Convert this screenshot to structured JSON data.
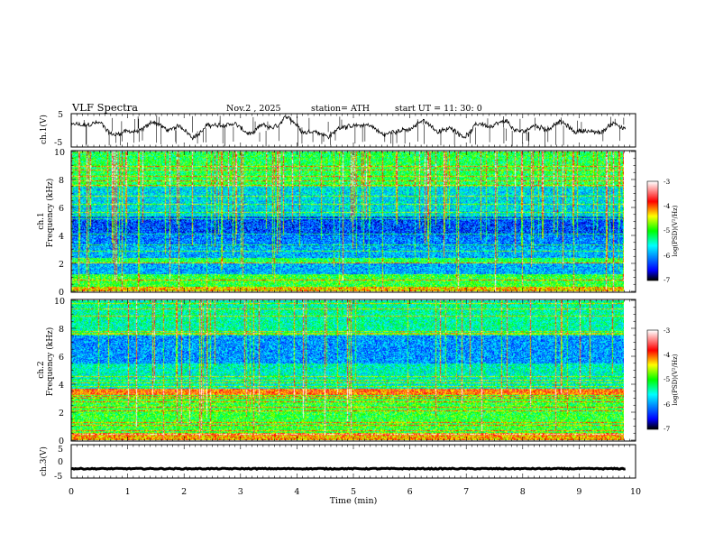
{
  "header": {
    "title": "VLF  Spectra",
    "date": "Nov.2  , 2025",
    "station": "station= ATH",
    "start_ut": "start  UT  =    11: 30: 0"
  },
  "chart_data": [
    {
      "type": "line",
      "name": "ch1-waveform",
      "ylabel": "ch.1(V)",
      "ylim": [
        -5,
        5
      ],
      "yticks": [
        "5",
        "-5"
      ],
      "xlim": [
        0,
        10
      ],
      "data_extent_min": 9.82,
      "description_values": {
        "baseline_v": 0.5,
        "amplitude_v": 2.5,
        "spikes": "frequent downward spikes to about -4 V"
      }
    },
    {
      "type": "heatmap",
      "name": "ch1-spectrogram",
      "ylabel_line1": "ch.1",
      "ylabel_line2": "Frequency  (kHz)",
      "xlim": [
        0,
        10
      ],
      "ylim": [
        0,
        10
      ],
      "yticks": [
        "0",
        "2",
        "4",
        "6",
        "8",
        "10"
      ],
      "colorbar": {
        "label": "log(PSD)(V²/Hz)",
        "range": [
          -7,
          -3
        ],
        "ticks": [
          "-3",
          "-4",
          "-5",
          "-6",
          "-7"
        ]
      },
      "bands_khz": [
        {
          "range": [
            0.0,
            0.3
          ],
          "level": -4.3
        },
        {
          "range": [
            0.3,
            1.2
          ],
          "level": -5.0
        },
        {
          "range": [
            1.2,
            2.0
          ],
          "level": -5.9
        },
        {
          "range": [
            2.0,
            2.4
          ],
          "level": -5.1
        },
        {
          "range": [
            2.4,
            3.2
          ],
          "level": -5.9
        },
        {
          "range": [
            3.2,
            4.0
          ],
          "level": -6.1
        },
        {
          "range": [
            4.0,
            5.4
          ],
          "level": -6.3
        },
        {
          "range": [
            5.4,
            7.5
          ],
          "level": -5.7
        },
        {
          "range": [
            7.5,
            10.0
          ],
          "level": -5.1
        }
      ]
    },
    {
      "type": "heatmap",
      "name": "ch2-spectrogram",
      "ylabel_line1": "ch.2",
      "ylabel_line2": "Frequency  (kHz)",
      "xlim": [
        0,
        10
      ],
      "ylim": [
        0,
        10
      ],
      "yticks": [
        "0",
        "2",
        "4",
        "6",
        "8",
        "10"
      ],
      "colorbar": {
        "label": "log(PSD)(V²/Hz)",
        "range": [
          -7,
          -3
        ],
        "ticks": [
          "-3",
          "-4",
          "-5",
          "-6",
          "-7"
        ]
      },
      "bands_khz": [
        {
          "range": [
            0.0,
            0.5
          ],
          "level": -4.2
        },
        {
          "range": [
            0.5,
            3.2
          ],
          "level": -5.0
        },
        {
          "range": [
            3.2,
            3.7
          ],
          "level": -4.0
        },
        {
          "range": [
            3.7,
            5.5
          ],
          "level": -5.5
        },
        {
          "range": [
            5.5,
            7.5
          ],
          "level": -6.0
        },
        {
          "range": [
            7.5,
            10.0
          ],
          "level": -5.4
        }
      ]
    },
    {
      "type": "line",
      "name": "ch3-waveform",
      "ylabel": "ch.3(V)",
      "ylim": [
        -5,
        5
      ],
      "yticks": [
        "5",
        "0",
        "-5"
      ],
      "xlim": [
        0,
        10
      ],
      "data_extent_min": 9.82,
      "description_values": {
        "baseline_v": -2.2,
        "amplitude_v": 0.3
      }
    }
  ],
  "x_axis": {
    "label": "Time  (min)",
    "ticks": [
      "0",
      "1",
      "2",
      "3",
      "4",
      "5",
      "6",
      "7",
      "8",
      "9",
      "10"
    ]
  },
  "colors": {
    "waveform": "#000000",
    "colormap": [
      "#000000",
      "#0000ff",
      "#00ffff",
      "#00ff00",
      "#ffff00",
      "#ff0000",
      "#ffffff"
    ]
  }
}
